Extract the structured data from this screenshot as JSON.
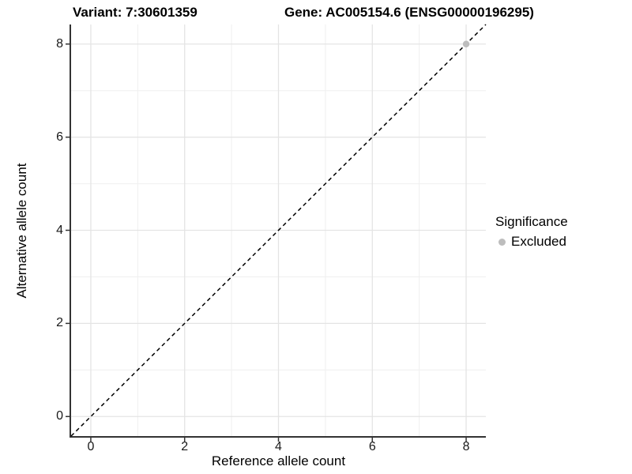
{
  "legend": {
    "title": "Significance",
    "items": [
      {
        "label": "Excluded",
        "color": "#bdbdbd"
      }
    ]
  },
  "colors": {
    "grid_major": "#e4e4e4",
    "grid_minor": "#efefef",
    "axis": "#333333",
    "point_excluded": "#bdbdbd",
    "reference_line": "#000000"
  },
  "chart_data": {
    "type": "scatter",
    "title_left": "Variant: 7:30601359",
    "title_right": "Gene: AC005154.6 (ENSG00000196295)",
    "xlabel": "Reference allele count",
    "ylabel": "Alternative allele count",
    "xlim": [
      -0.42,
      8.42
    ],
    "ylim": [
      -0.42,
      8.42
    ],
    "xticks": [
      0,
      2,
      4,
      6,
      8
    ],
    "yticks": [
      0,
      2,
      4,
      6,
      8
    ],
    "minor_xticks": [
      1,
      3,
      5,
      7
    ],
    "minor_yticks": [
      1,
      3,
      5,
      7
    ],
    "grid": "on",
    "legend_position": "right",
    "legend_title": "Significance",
    "series": [
      {
        "name": "Excluded",
        "color": "#bdbdbd",
        "points": [
          [
            8,
            8
          ]
        ]
      }
    ],
    "reference_line": {
      "kind": "identity y=x",
      "style": "dashed",
      "color": "#000000"
    }
  }
}
